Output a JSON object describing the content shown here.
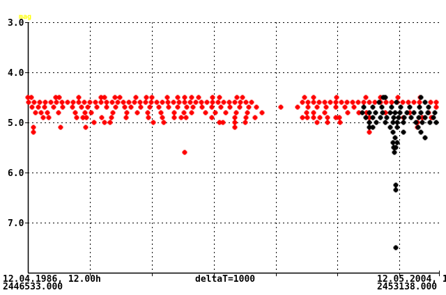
{
  "chart_data": {
    "type": "scatter",
    "ylabel": "mag",
    "y_inverted": true,
    "ylim": [
      3.0,
      8.0
    ],
    "yticks": [
      "3.0",
      "4.0",
      "5.0",
      "6.0",
      "7.0"
    ],
    "ytick_values": [
      3,
      4,
      5,
      6,
      7
    ],
    "xlim": [
      2446533,
      2453170
    ],
    "x_grid_step": 1000,
    "grid": true,
    "x_labels": {
      "start_date": "12.04.1986, 12.00h",
      "start_jd": "2446533.000",
      "delta": "deltaT=1000",
      "end_date": "12.05.2004, 1",
      "end_jd": "2453138.000"
    },
    "series": [
      {
        "color": "#ff0000",
        "rows": [
          {
            "mag": 4.5,
            "jd": [
              2446533,
              2446589,
              2446983,
              2447039,
              2447353,
              2447713,
              2447769,
              2447938,
              2448017,
              2448275,
              2448444,
              2448534,
              2448781,
              2448950,
              2449062,
              2449175,
              2449287,
              2449512,
              2449624,
              2449905,
              2449995,
              2450995,
              2451141,
              2451512,
              2451984,
              2452220,
              2452501,
              2452861
            ]
          },
          {
            "mag": 4.6,
            "jd": [
              2446540,
              2446630,
              2446720,
              2446810,
              2446900,
              2446990,
              2447080,
              2447170,
              2447260,
              2447350,
              2447440,
              2447530,
              2447620,
              2447710,
              2447800,
              2447890,
              2447980,
              2448070,
              2448160,
              2448250,
              2448340,
              2448430,
              2448520,
              2448610,
              2448700,
              2448790,
              2448880,
              2448970,
              2449060,
              2449150,
              2449240,
              2449330,
              2449420,
              2449510,
              2449600,
              2449690,
              2449780,
              2449870,
              2449960,
              2450050,
              2450140,
              2450960,
              2451050,
              2451140,
              2451230,
              2451320,
              2451410,
              2451500,
              2451590,
              2451680,
              2451770,
              2451860,
              2451950,
              2452040,
              2452130,
              2452220,
              2452310,
              2452400,
              2452490,
              2452580,
              2452670,
              2452760,
              2452850,
              2452940,
              2453030,
              2453120
            ]
          },
          {
            "mag": 4.7,
            "jd": [
              2446600,
              2446700,
              2446800,
              2446950,
              2447100,
              2447250,
              2447400,
              2447500,
              2447650,
              2447800,
              2447950,
              2448100,
              2448200,
              2448350,
              2448500,
              2448650,
              2448800,
              2448950,
              2449100,
              2449200,
              2449350,
              2449500,
              2449650,
              2449800,
              2449950,
              2450100,
              2450220,
              2450620,
              2450890,
              2451050,
              2451200,
              2451350,
              2451500,
              2451650,
              2451800,
              2451950,
              2452100,
              2452250,
              2452400,
              2452550,
              2452700,
              2452850,
              2453000,
              2453120
            ]
          },
          {
            "mag": 4.8,
            "jd": [
              2446660,
              2446750,
              2446850,
              2447030,
              2447300,
              2447450,
              2447560,
              2447900,
              2448130,
              2448300,
              2448470,
              2448680,
              2448900,
              2449050,
              2449180,
              2449400,
              2449560,
              2449730,
              2449900,
              2450080,
              2450310,
              2451030,
              2451150,
              2451320,
              2451700,
              2451880,
              2452000,
              2452300,
              2452700,
              2453000
            ]
          },
          {
            "mag": 4.9,
            "jd": [
              2446780,
              2446870,
              2447320,
              2447420,
              2447480,
              2447720,
              2447880,
              2448120,
              2448480,
              2448700,
              2448900,
              2449010,
              2449090,
              2449500,
              2449870,
              2450050,
              2450200,
              2450970,
              2451040,
              2451150,
              2451250,
              2451370,
              2451500,
              2451560,
              2452050,
              2452600,
              2452900,
              2453050
            ]
          },
          {
            "mag": 5.0,
            "jd": [
              2447601,
              2447769,
              2447859,
              2448556,
              2448724,
              2449623,
              2449680,
              2449870,
              2450040,
              2451197,
              2451366,
              2451568,
              2452432,
              2452826
            ]
          },
          {
            "mag": 5.1,
            "jd": [
              2446623,
              2447061,
              2447466,
              2449870,
              2452826
            ]
          },
          {
            "mag": 5.2,
            "jd": [
              2446623,
              2452040
            ]
          },
          {
            "mag": 5.6,
            "jd": [
              2449062
            ]
          }
        ]
      },
      {
        "color": "#000000",
        "rows": [
          {
            "mag": 4.5,
            "jd": [
              2452265,
              2452300,
              2452880
            ]
          },
          {
            "mag": 4.6,
            "jd": [
              2452200,
              2452480,
              2452950
            ]
          },
          {
            "mag": 4.7,
            "jd": [
              2451950,
              2452100,
              2452250,
              2452400,
              2452550,
              2452700,
              2452850,
              2453000
            ]
          },
          {
            "mag": 4.8,
            "jd": [
              2451930,
              2452040,
              2452150,
              2452260,
              2452380,
              2452460,
              2452540,
              2452650,
              2452760,
              2452880,
              2452990,
              2453100
            ]
          },
          {
            "mag": 4.9,
            "jd": [
              2451990,
              2452100,
              2452220,
              2452330,
              2452440,
              2452520,
              2452610,
              2452720,
              2452840,
              2452950,
              2453080
            ]
          },
          {
            "mag": 5.0,
            "jd": [
              2452040,
              2452160,
              2452300,
              2452430,
              2452500,
              2452600,
              2452800,
              2452900,
              2453020,
              2453130
            ]
          },
          {
            "mag": 5.1,
            "jd": [
              2452040,
              2452100,
              2452380,
              2452500,
              2452830
            ]
          },
          {
            "mag": 5.2,
            "jd": [
              2452430,
              2452600,
              2452880
            ]
          },
          {
            "mag": 5.3,
            "jd": [
              2452460,
              2452940
            ]
          },
          {
            "mag": 5.4,
            "jd": [
              2452430,
              2452500
            ]
          },
          {
            "mag": 5.5,
            "jd": [
              2452440,
              2452470
            ]
          },
          {
            "mag": 5.6,
            "jd": [
              2452455
            ]
          },
          {
            "mag": 6.25,
            "jd": [
              2452477
            ]
          },
          {
            "mag": 6.35,
            "jd": [
              2452477
            ]
          },
          {
            "mag": 7.5,
            "jd": [
              2452477
            ]
          }
        ]
      }
    ],
    "colors": {
      "ylabel": "#ffff00",
      "grid": "#000000"
    }
  }
}
